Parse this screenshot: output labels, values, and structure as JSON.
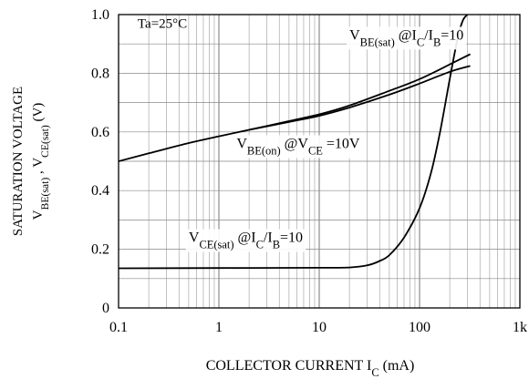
{
  "chart_data": {
    "type": "line",
    "xscale": "log",
    "xlim": [
      0.1,
      1000
    ],
    "ylim": [
      0,
      1.0
    ],
    "x_ticks": [
      {
        "value": 0.1,
        "label": "0.1"
      },
      {
        "value": 1,
        "label": "1"
      },
      {
        "value": 10,
        "label": "10"
      },
      {
        "value": 100,
        "label": "100"
      },
      {
        "value": 1000,
        "label": "1k"
      }
    ],
    "y_ticks": [
      {
        "value": 0,
        "label": "0"
      },
      {
        "value": 0.2,
        "label": "0.2"
      },
      {
        "value": 0.4,
        "label": "0.4"
      },
      {
        "value": 0.6,
        "label": "0.6"
      },
      {
        "value": 0.8,
        "label": "0.8"
      },
      {
        "value": 1.0,
        "label": "1.0"
      }
    ],
    "xlabel": {
      "main": "COLLECTOR CURRENT I",
      "sub": "C",
      "tail": "  (mA)"
    },
    "ylabel": {
      "line1": "SATURATION VOLTAGE",
      "line2": [
        {
          "t": "V",
          "sub": false
        },
        {
          "t": "BE(sat)",
          "sub": true
        },
        {
          "t": " , V",
          "sub": false
        },
        {
          "t": "CE(sat)",
          "sub": true
        },
        {
          "t": "  (V)",
          "sub": false
        }
      ]
    },
    "grid": true,
    "annotation": "Ta=25°C",
    "series": [
      {
        "name": "VBE(sat)",
        "x": [
          0.1,
          0.2,
          0.5,
          1,
          2,
          5,
          10,
          20,
          50,
          100,
          200,
          320
        ],
        "y": [
          0.5,
          0.527,
          0.562,
          0.585,
          0.607,
          0.637,
          0.66,
          0.69,
          0.74,
          0.78,
          0.83,
          0.865
        ]
      },
      {
        "name": "VBE(on)",
        "x": [
          2,
          5,
          10,
          20,
          50,
          100,
          200,
          320
        ],
        "y": [
          0.607,
          0.634,
          0.655,
          0.683,
          0.727,
          0.765,
          0.805,
          0.825
        ]
      },
      {
        "name": "VCE(sat)",
        "x": [
          0.1,
          1,
          10,
          20,
          30,
          40,
          50,
          70,
          100,
          130,
          160,
          200,
          240,
          270,
          300
        ],
        "y": [
          0.135,
          0.136,
          0.137,
          0.138,
          0.145,
          0.16,
          0.18,
          0.24,
          0.34,
          0.46,
          0.6,
          0.78,
          0.92,
          0.98,
          1.0
        ]
      }
    ],
    "curve_labels": [
      {
        "series": "VBE(sat)",
        "parts": [
          {
            "t": "V",
            "sub": false
          },
          {
            "t": "BE(sat)",
            "sub": true
          },
          {
            "t": "   @I",
            "sub": false
          },
          {
            "t": "C",
            "sub": true
          },
          {
            "t": "/I",
            "sub": false
          },
          {
            "t": "B",
            "sub": true
          },
          {
            "t": "=10",
            "sub": false
          }
        ]
      },
      {
        "series": "VBE(on)",
        "parts": [
          {
            "t": "V",
            "sub": false
          },
          {
            "t": "BE(on)",
            "sub": true
          },
          {
            "t": "    @V",
            "sub": false
          },
          {
            "t": "CE",
            "sub": true
          },
          {
            "t": " =10V",
            "sub": false
          }
        ]
      },
      {
        "series": "VCE(sat)",
        "parts": [
          {
            "t": "V",
            "sub": false
          },
          {
            "t": "CE(sat)",
            "sub": true
          },
          {
            "t": "   @I",
            "sub": false
          },
          {
            "t": "C",
            "sub": true
          },
          {
            "t": "/I",
            "sub": false
          },
          {
            "t": "B",
            "sub": true
          },
          {
            "t": "=10",
            "sub": false
          }
        ]
      }
    ]
  }
}
